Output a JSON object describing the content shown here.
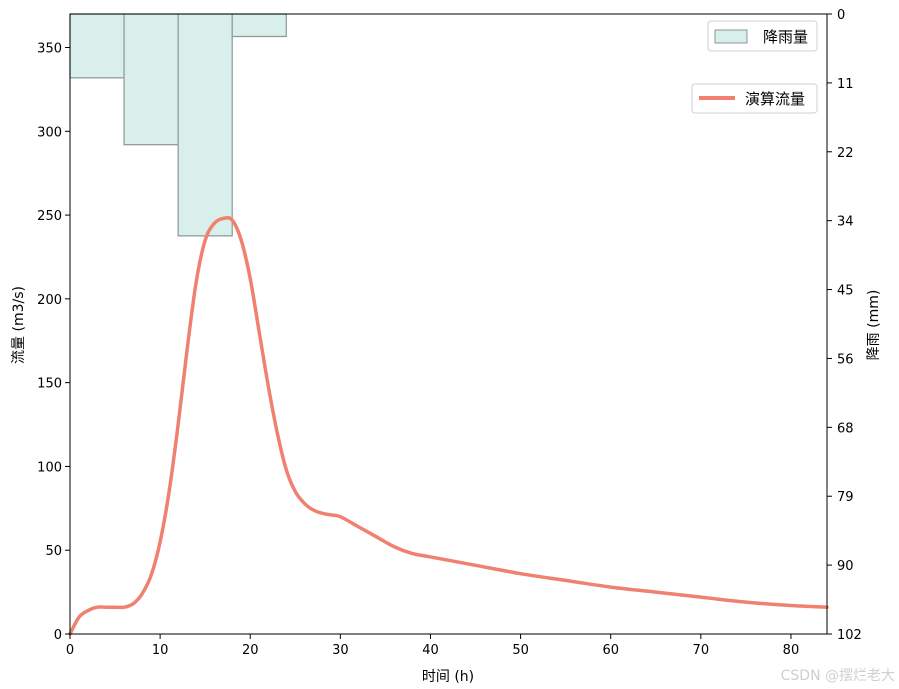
{
  "chart_data": {
    "type": "line",
    "xlabel": "时间 (h)",
    "ylabel_left": "流量 (m3/s)",
    "ylabel_right": "降雨 (mm)",
    "xlim": [
      0,
      84
    ],
    "ylim_left": [
      0,
      370
    ],
    "ylim_right": [
      102,
      0
    ],
    "right_axis_inverted": true,
    "x_ticks": [
      0,
      10,
      20,
      30,
      40,
      50,
      60,
      70,
      80
    ],
    "y_ticks_left": [
      0,
      50,
      100,
      150,
      200,
      250,
      300,
      350
    ],
    "y_ticks_right": [
      "0",
      "11",
      "22",
      "34",
      "45",
      "56",
      "68",
      "79",
      "90",
      "102"
    ],
    "grid": false,
    "rain_series": {
      "name": "降雨量",
      "type": "bar",
      "bin_edges": [
        0,
        6,
        12,
        18,
        24
      ],
      "values": [
        10.5,
        21.5,
        36.5,
        3.7
      ],
      "fill_color": "#d9efec",
      "edge_color": "#8a9795"
    },
    "flow_series": {
      "name": "演算流量",
      "type": "line",
      "color": "#f08070",
      "x": [
        0,
        1,
        2,
        3,
        4,
        5,
        6,
        7,
        8,
        9,
        10,
        11,
        12,
        13,
        14,
        15,
        16,
        17,
        18,
        19,
        20,
        21,
        22,
        23,
        24,
        25,
        26,
        27,
        28,
        29,
        30,
        32,
        34,
        36,
        38,
        40,
        45,
        50,
        55,
        60,
        65,
        70,
        75,
        80,
        84
      ],
      "y": [
        0,
        10,
        14,
        16,
        16,
        16,
        16,
        18,
        24,
        35,
        55,
        85,
        125,
        170,
        210,
        235,
        245,
        248,
        247,
        235,
        212,
        180,
        148,
        120,
        98,
        85,
        78,
        74,
        72,
        71,
        70,
        64,
        58,
        52,
        48,
        46,
        41,
        36,
        32,
        28,
        25,
        22,
        19,
        17,
        16
      ]
    },
    "legend": [
      {
        "label": "降雨量",
        "placement": "top-right",
        "kind": "patch"
      },
      {
        "label": "演算流量",
        "placement": "upper-right",
        "kind": "line"
      }
    ]
  },
  "watermark": "CSDN @摆烂老大"
}
